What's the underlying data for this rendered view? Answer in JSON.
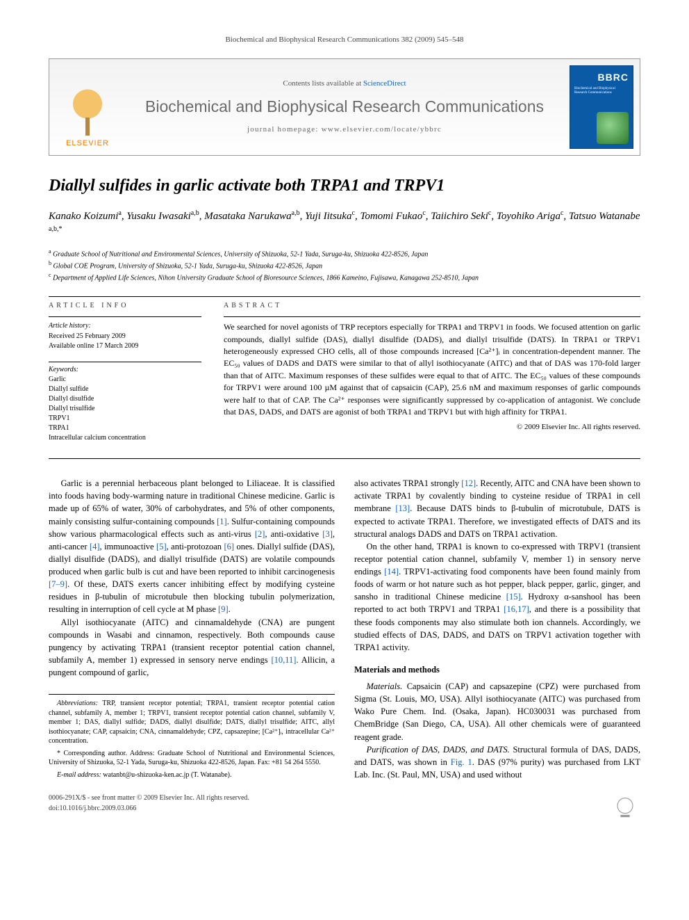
{
  "running_header": "Biochemical and Biophysical Research Communications 382 (2009) 545–548",
  "masthead": {
    "contents_prefix": "Contents lists available at ",
    "contents_link": "ScienceDirect",
    "journal": "Biochemical and Biophysical Research Communications",
    "homepage_prefix": "journal homepage: ",
    "homepage_url": "www.elsevier.com/locate/ybbrc",
    "publisher": "ELSEVIER",
    "cover_abbrev": "BBRC"
  },
  "article": {
    "title": "Diallyl sulfides in garlic activate both TRPA1 and TRPV1",
    "authors_html": "Kanako Koizumi<sup>a</sup>, Yusaku Iwasaki<sup>a,b</sup>, Masataka Narukawa<sup>a,b</sup>, Yuji Iitsuka<sup>c</sup>, Tomomi Fukao<sup>c</sup>, Taiichiro Seki<sup>c</sup>, Toyohiko Ariga<sup>c</sup>, Tatsuo Watanabe<sup> a,b,*</sup>",
    "affiliations": [
      {
        "key": "a",
        "text": "Graduate School of Nutritional and Environmental Sciences, University of Shizuoka, 52-1 Yada, Suruga-ku, Shizuoka 422-8526, Japan"
      },
      {
        "key": "b",
        "text": "Global COE Program, University of Shizuoka, 52-1 Yada, Suruga-ku, Shizuoka 422-8526, Japan"
      },
      {
        "key": "c",
        "text": "Department of Applied Life Sciences, Nihon University Graduate School of Bioresource Sciences, 1866 Kameino, Fujisawa, Kanagawa 252-8510, Japan"
      }
    ]
  },
  "article_info": {
    "label": "ARTICLE INFO",
    "history_hdr": "Article history:",
    "history": [
      "Received 25 February 2009",
      "Available online 17 March 2009"
    ],
    "keywords_hdr": "Keywords:",
    "keywords": [
      "Garlic",
      "Diallyl sulfide",
      "Diallyl disulfide",
      "Diallyl trisulfide",
      "TRPV1",
      "TRPA1",
      "Intracellular calcium concentration"
    ]
  },
  "abstract": {
    "label": "ABSTRACT",
    "body": "We searched for novel agonists of TRP receptors especially for TRPA1 and TRPV1 in foods. We focused attention on garlic compounds, diallyl sulfide (DAS), diallyl disulfide (DADS), and diallyl trisulfide (DATS). In TRPA1 or TRPV1 heterogeneously expressed CHO cells, all of those compounds increased [Ca²⁺]ᵢ in concentration-dependent manner. The EC₅₀ values of DADS and DATS were similar to that of allyl isothiocyanate (AITC) and that of DAS was 170-fold larger than that of AITC. Maximum responses of these sulfides were equal to that of AITC. The EC₅₀ values of these compounds for TRPV1 were around 100 µM against that of capsaicin (CAP), 25.6 nM and maximum responses of garlic compounds were half to that of CAP. The Ca²⁺ responses were significantly suppressed by co-application of antagonist. We conclude that DAS, DADS, and DATS are agonist of both TRPA1 and TRPV1 but with high affinity for TRPA1.",
    "copyright": "© 2009 Elsevier Inc. All rights reserved."
  },
  "body": {
    "p1": "Garlic is a perennial herbaceous plant belonged to Liliaceae. It is classified into foods having body-warming nature in traditional Chinese medicine. Garlic is made up of 65% of water, 30% of carbohydrates, and 5% of other components, mainly consisting sulfur-containing compounds [1]. Sulfur-containing compounds show various pharmacological effects such as anti-virus [2], anti-oxidative [3], anti-cancer [4], immunoactive [5], anti-protozoan [6] ones. Diallyl sulfide (DAS), diallyl disulfide (DADS), and diallyl trisulfide (DATS) are volatile compounds produced when garlic bulb is cut and have been reported to inhibit carcinogenesis [7–9]. Of these, DATS exerts cancer inhibiting effect by modifying cysteine residues in β-tubulin of microtubule then blocking tubulin polymerization, resulting in interruption of cell cycle at M phase [9].",
    "p2": "Allyl isothiocyanate (AITC) and cinnamaldehyde (CNA) are pungent compounds in Wasabi and cinnamon, respectively. Both compounds cause pungency by activating TRPA1 (transient receptor potential cation channel, subfamily A, member 1) expressed in sensory nerve endings [10,11]. Allicin, a pungent compound of garlic,",
    "p3": "also activates TRPA1 strongly [12]. Recently, AITC and CNA have been shown to activate TRPA1 by covalently binding to cysteine residue of TRPA1 in cell membrane [13]. Because DATS binds to β-tubulin of microtubule, DATS is expected to activate TRPA1. Therefore, we investigated effects of DATS and its structural analogs DADS and DATS on TRPA1 activation.",
    "p4": "On the other hand, TRPA1 is known to co-expressed with TRPV1 (transient receptor potential cation channel, subfamily V, member 1) in sensory nerve endings [14]. TRPV1-activating food components have been found mainly from foods of warm or hot nature such as hot pepper, black pepper, garlic, ginger, and sansho in traditional Chinese medicine [15]. Hydroxy α-sanshool has been reported to act both TRPV1 and TRPA1 [16,17], and there is a possibility that these foods components may also stimulate both ion channels. Accordingly, we studied effects of DAS, DADS, and DATS on TRPV1 activation together with TRPA1 activity.",
    "mm_head": "Materials and methods",
    "mm1_lead": "Materials.",
    "mm1": " Capsaicin (CAP) and capsazepine (CPZ) were purchased from Sigma (St. Louis, MO, USA). Allyl isothiocyanate (AITC) was purchased from Wako Pure Chem. Ind. (Osaka, Japan). HC030031 was purchased from ChemBridge (San Diego, CA, USA). All other chemicals were of guaranteed reagent grade.",
    "mm2_lead": "Purification of DAS, DADS, and DATS.",
    "mm2": " Structural formula of DAS, DADS, and DATS, was shown in Fig. 1. DAS (97% purity) was purchased from LKT Lab. Inc. (St. Paul, MN, USA) and used without"
  },
  "footnotes": {
    "abbrev_lbl": "Abbreviations:",
    "abbrev": " TRP, transient receptor potential; TRPA1, transient receptor potential cation channel, subfamily A, member 1; TRPV1, transient receptor potential cation channel, subfamily V, member 1; DAS, diallyl sulfide; DADS, diallyl disulfide; DATS, diallyl trisulfide; AITC, allyl isothiocyanate; CAP, capsaicin; CNA, cinnamaldehyde; CPZ, capsazepine; [Ca²⁺]ᵢ, intracellular Ca²⁺ concentration.",
    "corr_mark": "*",
    "corr": " Corresponding author. Address: Graduate School of Nutritional and Environmental Sciences, University of Shizuoka, 52-1 Yada, Suruga-ku, Shizuoka 422-8526, Japan. Fax: +81 54 264 5550.",
    "email_lbl": "E-mail address:",
    "email": " watanbt@u-shizuoka-ken.ac.jp",
    "email_who": " (T. Watanabe)."
  },
  "footer": {
    "left1": "0006-291X/$ - see front matter © 2009 Elsevier Inc. All rights reserved.",
    "left2": "doi:10.1016/j.bbrc.2009.03.066"
  },
  "colors": {
    "link": "#1060c0",
    "elsevier_orange": "#ff7a00",
    "cover_blue": "#0b5aa6"
  }
}
